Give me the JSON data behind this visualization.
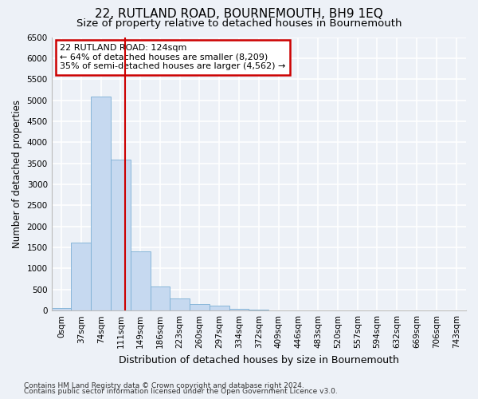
{
  "title": "22, RUTLAND ROAD, BOURNEMOUTH, BH9 1EQ",
  "subtitle": "Size of property relative to detached houses in Bournemouth",
  "xlabel": "Distribution of detached houses by size in Bournemouth",
  "ylabel": "Number of detached properties",
  "footnote1": "Contains HM Land Registry data © Crown copyright and database right 2024.",
  "footnote2": "Contains public sector information licensed under the Open Government Licence v3.0.",
  "bin_labels": [
    "0sqm",
    "37sqm",
    "74sqm",
    "111sqm",
    "149sqm",
    "186sqm",
    "223sqm",
    "260sqm",
    "297sqm",
    "334sqm",
    "372sqm",
    "409sqm",
    "446sqm",
    "483sqm",
    "520sqm",
    "557sqm",
    "594sqm",
    "632sqm",
    "669sqm",
    "706sqm",
    "743sqm"
  ],
  "bar_values": [
    60,
    1620,
    5080,
    3580,
    1400,
    580,
    290,
    150,
    110,
    45,
    20,
    10,
    5,
    2,
    1,
    1,
    0,
    0,
    0,
    0,
    0
  ],
  "bar_color": "#c6d9f0",
  "bar_edge_color": "#7bafd4",
  "ylim": [
    0,
    6500
  ],
  "yticks": [
    0,
    500,
    1000,
    1500,
    2000,
    2500,
    3000,
    3500,
    4000,
    4500,
    5000,
    5500,
    6000,
    6500
  ],
  "vline_x": 3.24,
  "vline_color": "#cc0000",
  "annotation_title": "22 RUTLAND ROAD: 124sqm",
  "annotation_line2": "← 64% of detached houses are smaller (8,209)",
  "annotation_line3": "35% of semi-detached houses are larger (4,562) →",
  "annotation_box_color": "#cc0000",
  "background_color": "#edf1f7",
  "grid_color": "#ffffff",
  "title_fontsize": 11,
  "subtitle_fontsize": 9.5,
  "ylabel_fontsize": 8.5,
  "xlabel_fontsize": 9,
  "tick_fontsize": 7.5,
  "annotation_fontsize": 8,
  "footnote_fontsize": 6.5
}
